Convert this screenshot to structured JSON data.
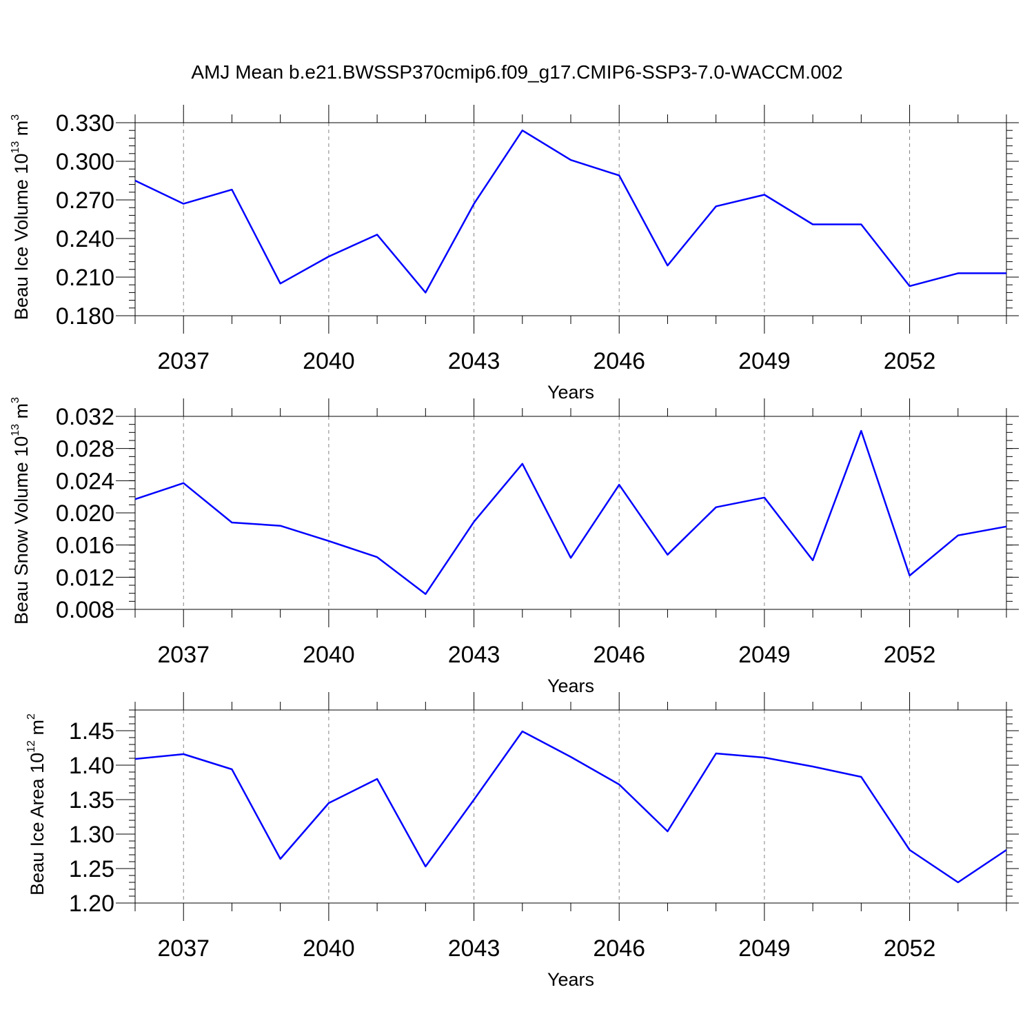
{
  "figure": {
    "title": "AMJ Mean b.e21.BWSSP370cmip6.f09_g17.CMIP6-SSP3-7.0-WACCM.002"
  },
  "colors": {
    "line": "#0000ff",
    "grid": "#808080",
    "axis": "#000000"
  },
  "chart_data": [
    {
      "type": "line",
      "xlabel": "Years",
      "ylabel": {
        "name": "Beau Ice Volume",
        "base": "10",
        "exp": "13",
        "unit": "m",
        "unit_exp": "3"
      },
      "xlim": [
        2036,
        2054
      ],
      "ylim": [
        0.18,
        0.33
      ],
      "xticks": [
        2037,
        2040,
        2043,
        2046,
        2049,
        2052
      ],
      "xtick_labels": [
        "2037",
        "2040",
        "2043",
        "2046",
        "2049",
        "2052"
      ],
      "yticks": [
        0.18,
        0.21,
        0.24,
        0.27,
        0.3,
        0.33
      ],
      "ytick_labels": [
        "0.180",
        "0.210",
        "0.240",
        "0.270",
        "0.300",
        "0.330"
      ],
      "y_minor_step": 0.006,
      "grid": "dashed vertical at major x ticks",
      "x": [
        2036,
        2037,
        2038,
        2039,
        2040,
        2041,
        2042,
        2043,
        2044,
        2045,
        2046,
        2047,
        2048,
        2049,
        2050,
        2051,
        2052,
        2053,
        2054
      ],
      "series": [
        {
          "values": [
            0.285,
            0.267,
            0.278,
            0.205,
            0.226,
            0.243,
            0.198,
            0.267,
            0.324,
            0.301,
            0.289,
            0.219,
            0.265,
            0.274,
            0.251,
            0.251,
            0.203,
            0.213,
            0.213
          ]
        }
      ]
    },
    {
      "type": "line",
      "xlabel": "Years",
      "ylabel": {
        "name": "Beau Snow Volume",
        "base": "10",
        "exp": "13",
        "unit": "m",
        "unit_exp": "3"
      },
      "xlim": [
        2036,
        2054
      ],
      "ylim": [
        0.008,
        0.032
      ],
      "xticks": [
        2037,
        2040,
        2043,
        2046,
        2049,
        2052
      ],
      "xtick_labels": [
        "2037",
        "2040",
        "2043",
        "2046",
        "2049",
        "2052"
      ],
      "yticks": [
        0.008,
        0.012,
        0.016,
        0.02,
        0.024,
        0.028,
        0.032
      ],
      "ytick_labels": [
        "0.008",
        "0.012",
        "0.016",
        "0.020",
        "0.024",
        "0.028",
        "0.032"
      ],
      "y_minor_step": 0.001,
      "grid": "dashed vertical at major x ticks",
      "x": [
        2036,
        2037,
        2038,
        2039,
        2040,
        2041,
        2042,
        2043,
        2044,
        2045,
        2046,
        2047,
        2048,
        2049,
        2050,
        2051,
        2052,
        2053,
        2054
      ],
      "series": [
        {
          "values": [
            0.0217,
            0.0237,
            0.0188,
            0.0184,
            0.0165,
            0.0145,
            0.0099,
            0.0189,
            0.0261,
            0.0144,
            0.0235,
            0.0148,
            0.0207,
            0.0219,
            0.0141,
            0.0302,
            0.0122,
            0.0172,
            0.0183
          ]
        }
      ]
    },
    {
      "type": "line",
      "xlabel": "Years",
      "ylabel": {
        "name": "Beau Ice Area",
        "base": "10",
        "exp": "12",
        "unit": "m",
        "unit_exp": "2"
      },
      "xlim": [
        2036,
        2054
      ],
      "ylim": [
        1.2,
        1.48
      ],
      "xticks": [
        2037,
        2040,
        2043,
        2046,
        2049,
        2052
      ],
      "xtick_labels": [
        "2037",
        "2040",
        "2043",
        "2046",
        "2049",
        "2052"
      ],
      "yticks": [
        1.2,
        1.25,
        1.3,
        1.35,
        1.4,
        1.45
      ],
      "ytick_labels": [
        "1.20",
        "1.25",
        "1.30",
        "1.35",
        "1.40",
        "1.45"
      ],
      "y_minor_step": 0.01,
      "grid": "dashed vertical at major x ticks",
      "x": [
        2036,
        2037,
        2038,
        2039,
        2040,
        2041,
        2042,
        2043,
        2044,
        2045,
        2046,
        2047,
        2048,
        2049,
        2050,
        2051,
        2052,
        2053,
        2054
      ],
      "series": [
        {
          "values": [
            1.409,
            1.416,
            1.394,
            1.264,
            1.345,
            1.38,
            1.253,
            1.35,
            1.449,
            1.412,
            1.372,
            1.304,
            1.417,
            1.411,
            1.398,
            1.383,
            1.277,
            1.23,
            1.277
          ]
        }
      ]
    }
  ]
}
